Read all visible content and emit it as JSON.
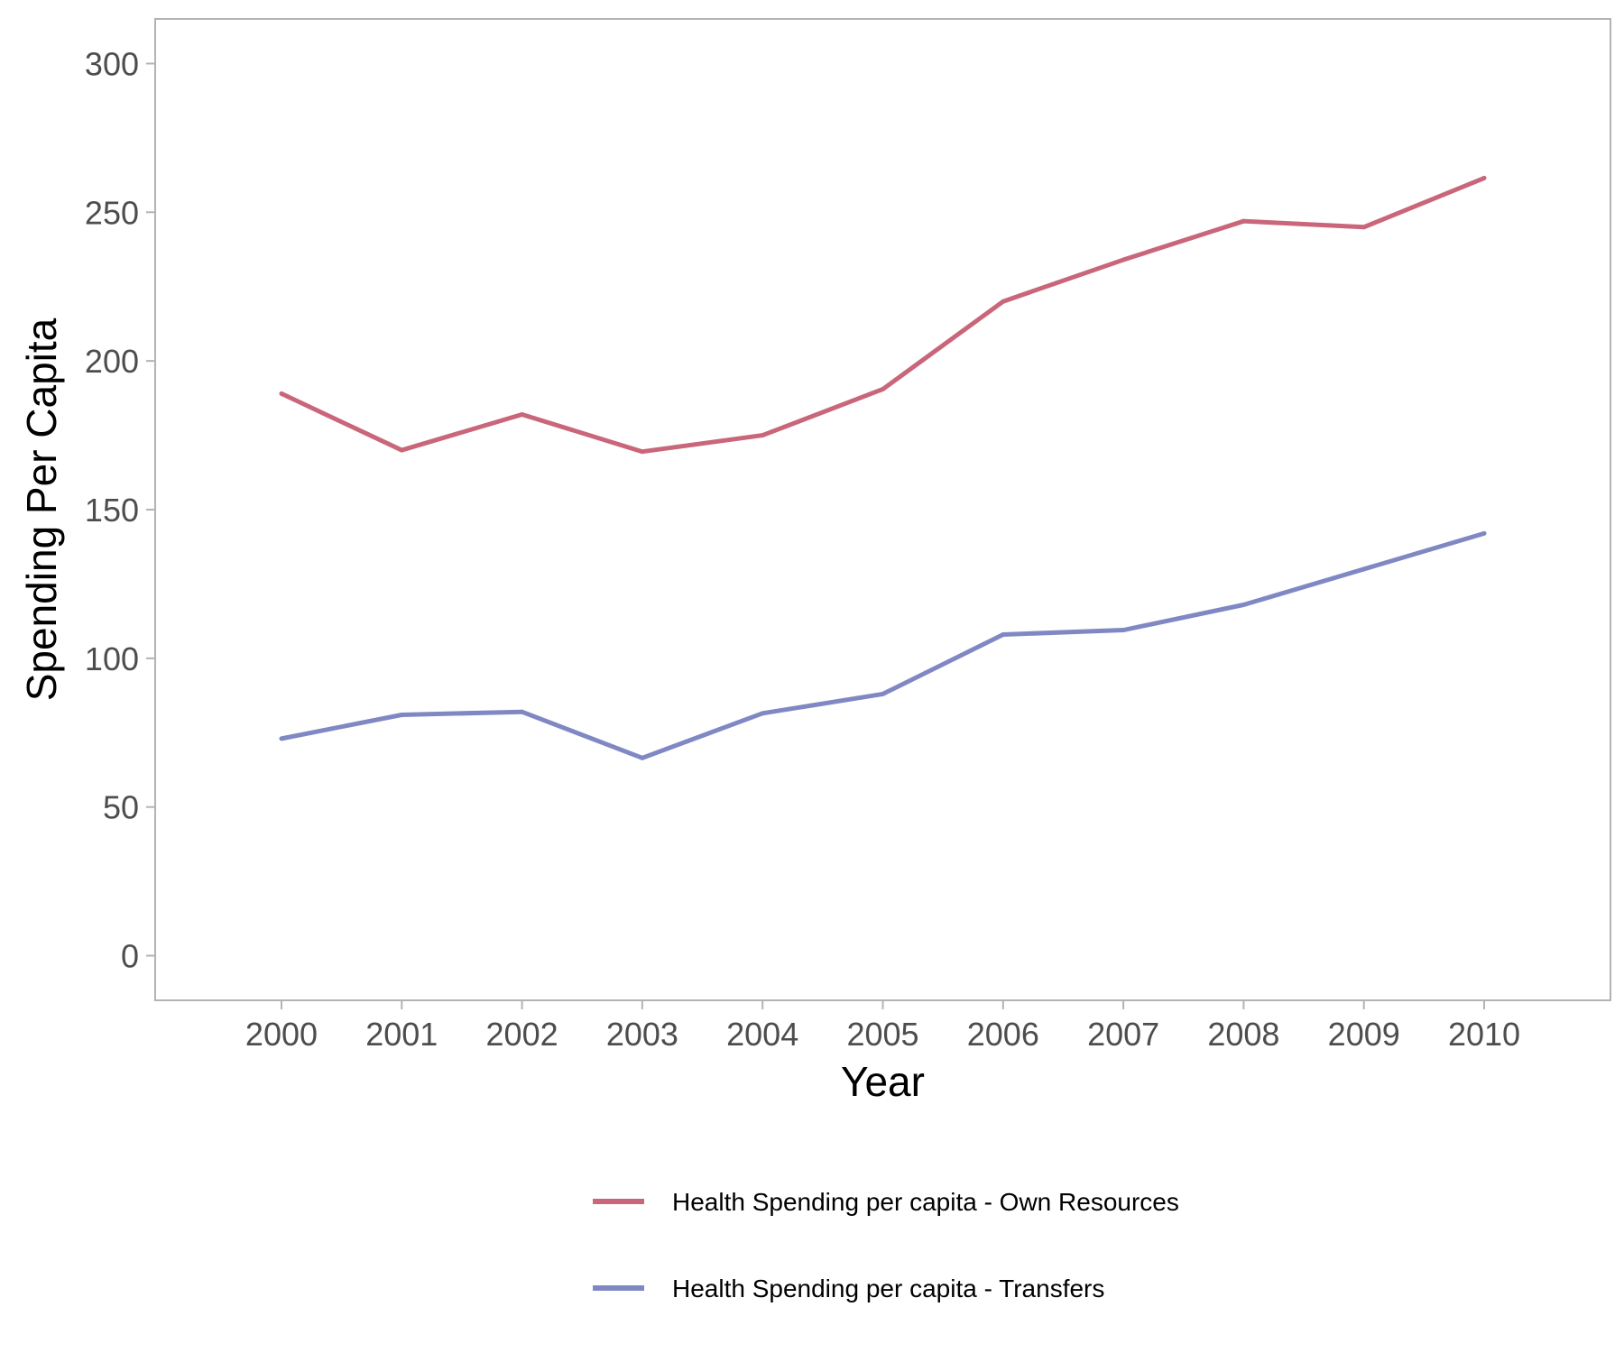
{
  "chart_data": {
    "type": "line",
    "title": "",
    "xlabel": "Year",
    "ylabel": "Spending Per Capita",
    "categories": [
      "2000",
      "2001",
      "2002",
      "2003",
      "2004",
      "2005",
      "2006",
      "2007",
      "2008",
      "2009",
      "2010"
    ],
    "yticks": [
      "0",
      "50",
      "100",
      "150",
      "200",
      "250",
      "300"
    ],
    "ylim": [
      -15,
      315
    ],
    "xlim": [
      1998.95,
      2011.05
    ],
    "grid": false,
    "legend_position": "bottom",
    "series": [
      {
        "name": "Health Spending per capita - Own Resources",
        "color": "#c9667a",
        "values": [
          189,
          170,
          182,
          169.5,
          175,
          190.5,
          220,
          234,
          247,
          245,
          261.5
        ]
      },
      {
        "name": "Health Spending per capita - Transfers",
        "color": "#8088c4",
        "values": [
          73,
          81,
          82,
          66.5,
          81.5,
          88,
          108,
          109.5,
          118,
          130,
          142
        ]
      }
    ]
  }
}
